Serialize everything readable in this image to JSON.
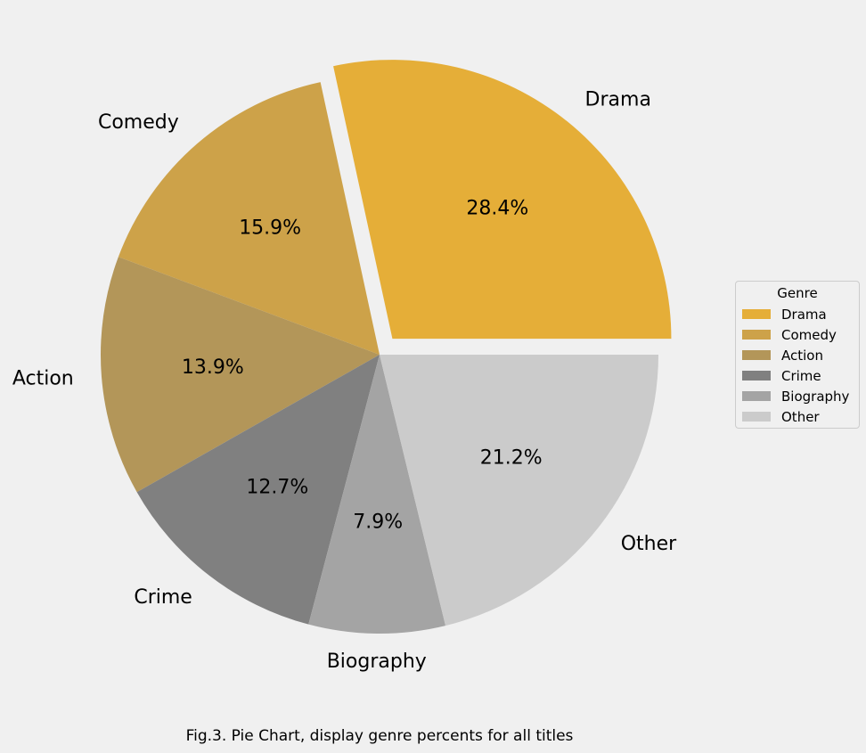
{
  "chart_data": {
    "type": "pie",
    "categories": [
      "Drama",
      "Comedy",
      "Action",
      "Crime",
      "Biography",
      "Other"
    ],
    "values": [
      28.4,
      15.9,
      13.9,
      12.7,
      7.9,
      21.2
    ],
    "percent_labels": [
      "28.4%",
      "15.9%",
      "13.9%",
      "12.7%",
      "7.9%",
      "21.2%"
    ],
    "colors": [
      "#e5ae38",
      "#cda249",
      "#b39659",
      "#808080",
      "#a4a4a4",
      "#cbcbcb"
    ],
    "exploded": [
      "Drama"
    ],
    "legend_title": "Genre",
    "legend_placement": "right"
  },
  "caption": "Fig.3. Pie Chart, display genre percents for all titles"
}
